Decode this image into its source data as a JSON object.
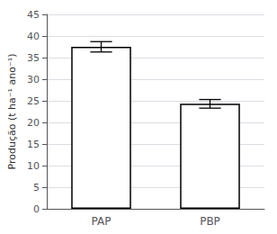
{
  "chart_data": {
    "type": "bar",
    "categories": [
      "PAP",
      "PBP"
    ],
    "values": [
      37.5,
      24.3
    ],
    "errors": [
      1.2,
      1.0
    ],
    "color": "#ffffff",
    "ylabel": "Produção (t ha⁻¹ ano⁻¹)",
    "ylim": [
      0,
      45
    ],
    "yticks": [
      0,
      5,
      10,
      15,
      20,
      25,
      30,
      35,
      40,
      45
    ],
    "grid": true
  }
}
